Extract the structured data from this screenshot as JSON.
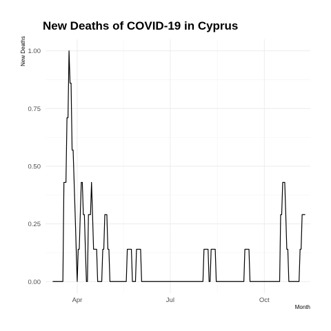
{
  "chart_data": {
    "type": "line",
    "title": "New Deaths of COVID-19 in Cyprus",
    "xlabel": "Month",
    "ylabel": "New Deaths",
    "x_start": "2020-03-08",
    "x_end": "2020-11-10",
    "xlim": [
      "2020-03-01",
      "2020-11-15"
    ],
    "ylim": [
      -0.05,
      1.05
    ],
    "y_ticks": [
      0.0,
      0.25,
      0.5,
      0.75,
      1.0
    ],
    "y_tick_labels": [
      "0.00",
      "0.25",
      "0.50",
      "0.75",
      "1.00"
    ],
    "x_ticks": [
      "2020-04-01",
      "2020-07-01",
      "2020-10-01"
    ],
    "x_tick_labels": [
      "Apr",
      "Jul",
      "Oct"
    ],
    "grid": true,
    "line_color": "#000000",
    "x": [
      "2020-03-08",
      "2020-03-09",
      "2020-03-10",
      "2020-03-11",
      "2020-03-12",
      "2020-03-13",
      "2020-03-14",
      "2020-03-15",
      "2020-03-16",
      "2020-03-17",
      "2020-03-18",
      "2020-03-19",
      "2020-03-20",
      "2020-03-21",
      "2020-03-22",
      "2020-03-23",
      "2020-03-24",
      "2020-03-25",
      "2020-03-26",
      "2020-03-27",
      "2020-03-28",
      "2020-03-29",
      "2020-03-30",
      "2020-03-31",
      "2020-04-01",
      "2020-04-02",
      "2020-04-03",
      "2020-04-04",
      "2020-04-05",
      "2020-04-06",
      "2020-04-07",
      "2020-04-08",
      "2020-04-09",
      "2020-04-10",
      "2020-04-11",
      "2020-04-12",
      "2020-04-13",
      "2020-04-14",
      "2020-04-15",
      "2020-04-16",
      "2020-04-17",
      "2020-04-18",
      "2020-04-19",
      "2020-04-20",
      "2020-04-21",
      "2020-04-22",
      "2020-04-23",
      "2020-04-24",
      "2020-04-25",
      "2020-04-26",
      "2020-04-27",
      "2020-04-28",
      "2020-04-29",
      "2020-04-30",
      "2020-05-01",
      "2020-05-02",
      "2020-05-03",
      "2020-05-04",
      "2020-05-05",
      "2020-05-06",
      "2020-05-07",
      "2020-05-08",
      "2020-05-09",
      "2020-05-10",
      "2020-05-11",
      "2020-05-12",
      "2020-05-13",
      "2020-05-14",
      "2020-05-15",
      "2020-05-16",
      "2020-05-17",
      "2020-05-18",
      "2020-05-19",
      "2020-05-20",
      "2020-05-21",
      "2020-05-22",
      "2020-05-23",
      "2020-05-24",
      "2020-05-25",
      "2020-05-26",
      "2020-05-27",
      "2020-05-28",
      "2020-05-29",
      "2020-05-30",
      "2020-05-31",
      "2020-06-01",
      "2020-06-02",
      "2020-06-03",
      "2020-06-04",
      "2020-06-05",
      "2020-06-06",
      "2020-06-07",
      "2020-06-08",
      "2020-06-09",
      "2020-06-10",
      "2020-06-11",
      "2020-06-12",
      "2020-06-13",
      "2020-06-14",
      "2020-06-15",
      "2020-06-16",
      "2020-06-17",
      "2020-06-18",
      "2020-06-19",
      "2020-06-20",
      "2020-06-21",
      "2020-06-22",
      "2020-06-23",
      "2020-06-24",
      "2020-06-25",
      "2020-06-26",
      "2020-06-27",
      "2020-06-28",
      "2020-06-29",
      "2020-06-30",
      "2020-07-01",
      "2020-07-02",
      "2020-07-03",
      "2020-07-04",
      "2020-07-05",
      "2020-07-06",
      "2020-07-07",
      "2020-07-08",
      "2020-07-09",
      "2020-07-10",
      "2020-07-11",
      "2020-07-12",
      "2020-07-13",
      "2020-07-14",
      "2020-07-15",
      "2020-07-16",
      "2020-07-17",
      "2020-07-18",
      "2020-07-19",
      "2020-07-20",
      "2020-07-21",
      "2020-07-22",
      "2020-07-23",
      "2020-07-24",
      "2020-07-25",
      "2020-07-26",
      "2020-07-27",
      "2020-07-28",
      "2020-07-29",
      "2020-07-30",
      "2020-07-31",
      "2020-08-01",
      "2020-08-02",
      "2020-08-03",
      "2020-08-04",
      "2020-08-05",
      "2020-08-06",
      "2020-08-07",
      "2020-08-08",
      "2020-08-09",
      "2020-08-10",
      "2020-08-11",
      "2020-08-12",
      "2020-08-13",
      "2020-08-14",
      "2020-08-15",
      "2020-08-16",
      "2020-08-17",
      "2020-08-18",
      "2020-08-19",
      "2020-08-20",
      "2020-08-21",
      "2020-08-22",
      "2020-08-23",
      "2020-08-24",
      "2020-08-25",
      "2020-08-26",
      "2020-08-27",
      "2020-08-28",
      "2020-08-29",
      "2020-08-30",
      "2020-08-31",
      "2020-09-01",
      "2020-09-02",
      "2020-09-03",
      "2020-09-04",
      "2020-09-05",
      "2020-09-06",
      "2020-09-07",
      "2020-09-08",
      "2020-09-09",
      "2020-09-10",
      "2020-09-11",
      "2020-09-12",
      "2020-09-13",
      "2020-09-14",
      "2020-09-15",
      "2020-09-16",
      "2020-09-17",
      "2020-09-18",
      "2020-09-19",
      "2020-09-20",
      "2020-09-21",
      "2020-09-22",
      "2020-09-23",
      "2020-09-24",
      "2020-09-25",
      "2020-09-26",
      "2020-09-27",
      "2020-09-28",
      "2020-09-29",
      "2020-09-30",
      "2020-10-01",
      "2020-10-02",
      "2020-10-03",
      "2020-10-04",
      "2020-10-05",
      "2020-10-06",
      "2020-10-07",
      "2020-10-08",
      "2020-10-09",
      "2020-10-10",
      "2020-10-11",
      "2020-10-12",
      "2020-10-13",
      "2020-10-14",
      "2020-10-15",
      "2020-10-16",
      "2020-10-17",
      "2020-10-18",
      "2020-10-19",
      "2020-10-20",
      "2020-10-21",
      "2020-10-22",
      "2020-10-23",
      "2020-10-24",
      "2020-10-25",
      "2020-10-26",
      "2020-10-27",
      "2020-10-28",
      "2020-10-29",
      "2020-10-30",
      "2020-10-31",
      "2020-11-01",
      "2020-11-02",
      "2020-11-03",
      "2020-11-04",
      "2020-11-05",
      "2020-11-06",
      "2020-11-07",
      "2020-11-08",
      "2020-11-09",
      "2020-11-10"
    ],
    "y": [
      0,
      0,
      0,
      0,
      0,
      0,
      0,
      0,
      0,
      0,
      0,
      0.43,
      0.43,
      0.43,
      0.71,
      0.71,
      1,
      0.86,
      0.86,
      0.57,
      0.57,
      0.43,
      0.29,
      0.14,
      0,
      0.14,
      0.14,
      0.29,
      0.43,
      0.43,
      0.29,
      0.29,
      0.14,
      0,
      0,
      0.29,
      0.29,
      0.29,
      0.43,
      0.29,
      0.14,
      0.14,
      0.14,
      0.14,
      0,
      0,
      0,
      0,
      0,
      0.14,
      0.14,
      0.29,
      0.29,
      0.29,
      0.14,
      0.14,
      0,
      0,
      0,
      0,
      0,
      0,
      0,
      0,
      0,
      0,
      0,
      0,
      0,
      0,
      0,
      0,
      0,
      0.14,
      0.14,
      0.14,
      0.14,
      0.14,
      0,
      0,
      0,
      0,
      0.14,
      0.14,
      0.14,
      0.14,
      0.14,
      0,
      0,
      0,
      0,
      0,
      0,
      0,
      0,
      0,
      0,
      0,
      0,
      0,
      0,
      0,
      0,
      0,
      0,
      0,
      0,
      0,
      0,
      0,
      0,
      0,
      0,
      0,
      0,
      0,
      0,
      0,
      0,
      0,
      0,
      0,
      0,
      0,
      0,
      0,
      0,
      0,
      0,
      0,
      0,
      0,
      0,
      0,
      0,
      0,
      0,
      0,
      0,
      0,
      0,
      0,
      0,
      0,
      0,
      0,
      0,
      0,
      0.14,
      0.14,
      0.14,
      0.14,
      0.14,
      0,
      0,
      0.14,
      0.14,
      0.14,
      0.14,
      0.14,
      0,
      0,
      0,
      0,
      0,
      0,
      0,
      0,
      0,
      0,
      0,
      0,
      0,
      0,
      0,
      0,
      0,
      0,
      0,
      0,
      0,
      0,
      0,
      0,
      0,
      0,
      0,
      0,
      0.14,
      0.14,
      0.14,
      0.14,
      0.14,
      0,
      0,
      0,
      0,
      0,
      0,
      0,
      0,
      0,
      0,
      0,
      0,
      0,
      0,
      0,
      0,
      0,
      0,
      0,
      0,
      0,
      0,
      0,
      0,
      0,
      0,
      0,
      0,
      0,
      0,
      0.29,
      0.29,
      0.43,
      0.43,
      0.43,
      0.29,
      0.14,
      0.14,
      0,
      0,
      0,
      0,
      0,
      0,
      0,
      0,
      0,
      0,
      0,
      0.14,
      0.14,
      0.29,
      0.29,
      0.29,
      0.29
    ]
  }
}
